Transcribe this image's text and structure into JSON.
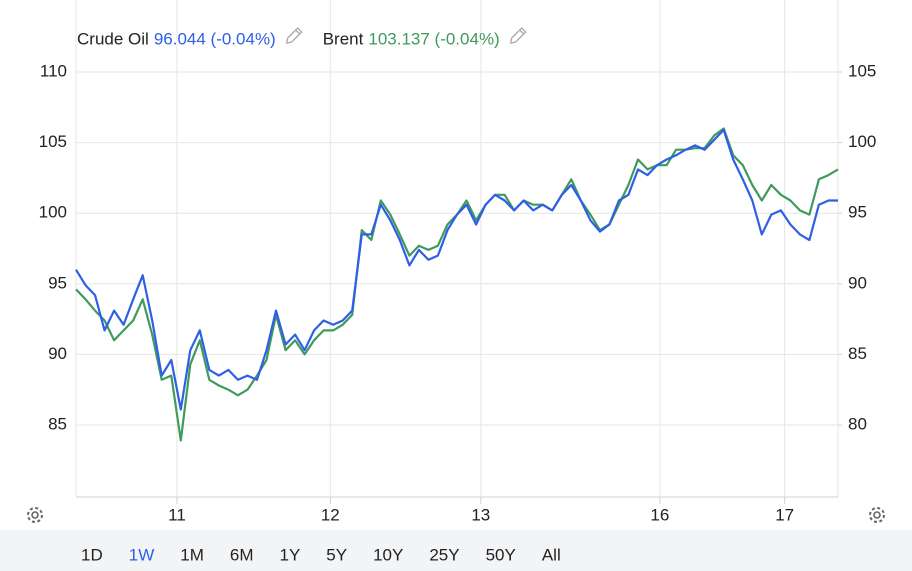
{
  "chart_data": {
    "type": "line",
    "x": [
      0,
      1,
      2,
      3,
      4,
      5,
      6,
      7,
      8,
      9,
      10,
      11,
      12,
      13,
      14,
      15,
      16,
      17,
      18,
      19,
      20,
      21,
      22,
      23,
      24,
      25,
      26,
      27,
      28,
      29,
      30,
      31,
      32,
      33,
      34,
      35,
      36,
      37,
      38,
      39,
      40,
      41,
      42,
      43,
      44,
      45,
      46,
      47,
      48,
      49,
      50,
      51,
      52,
      53,
      54,
      55,
      56,
      57,
      58,
      59,
      60,
      61,
      62,
      63,
      64,
      65,
      66,
      67,
      68,
      69,
      70,
      71,
      72,
      73,
      74,
      75,
      76,
      77,
      78,
      79,
      80
    ],
    "xlim": [
      0,
      80
    ],
    "xticks": [
      {
        "value": 10.6,
        "label": "11"
      },
      {
        "value": 26.7,
        "label": "12"
      },
      {
        "value": 42.5,
        "label": "13"
      },
      {
        "value": 61.3,
        "label": "16"
      },
      {
        "value": 74.4,
        "label": "17"
      }
    ],
    "ylim": [
      80,
      115
    ],
    "yticks": [
      85,
      90,
      95,
      100,
      105,
      110
    ],
    "y2lim": [
      75,
      110
    ],
    "y2ticks": [
      80,
      85,
      90,
      95,
      100,
      105
    ],
    "grid": true,
    "series": [
      {
        "name": "Crude Oil",
        "legend_value": "96.044 (-0.04%)",
        "color": "#2e5fe6",
        "axis": "y2",
        "values": [
          91.0,
          89.9,
          89.2,
          86.7,
          88.1,
          87.1,
          88.9,
          90.6,
          87.4,
          83.5,
          84.6,
          81.1,
          85.3,
          86.7,
          83.9,
          83.5,
          83.9,
          83.2,
          83.5,
          83.2,
          85.3,
          88.1,
          85.7,
          86.4,
          85.3,
          86.7,
          87.4,
          87.1,
          87.4,
          88.1,
          93.5,
          93.5,
          95.6,
          94.5,
          93.1,
          91.3,
          92.4,
          91.7,
          92.0,
          93.8,
          94.9,
          95.6,
          94.2,
          95.6,
          96.3,
          95.9,
          95.2,
          95.9,
          95.2,
          95.6,
          95.2,
          96.3,
          97.0,
          95.9,
          94.5,
          93.7,
          94.2,
          95.9,
          96.3,
          98.1,
          97.7,
          98.4,
          98.8,
          99.1,
          99.5,
          99.8,
          99.5,
          100.2,
          100.9,
          98.8,
          97.4,
          95.9,
          93.5,
          94.9,
          95.2,
          94.2,
          93.5,
          93.1,
          95.6,
          95.9,
          95.9
        ]
      },
      {
        "name": "Brent",
        "legend_value": "103.137 (-0.04%)",
        "color": "#3f9a5c",
        "values": [
          94.6,
          93.9,
          93.1,
          92.4,
          91.0,
          91.7,
          92.4,
          93.9,
          91.4,
          88.2,
          88.5,
          83.9,
          89.3,
          91.0,
          88.2,
          87.8,
          87.5,
          87.1,
          87.5,
          88.5,
          89.6,
          92.8,
          90.3,
          91.0,
          90.0,
          91.0,
          91.7,
          91.7,
          92.1,
          92.8,
          98.8,
          98.1,
          100.9,
          99.9,
          98.5,
          97.0,
          97.7,
          97.4,
          97.7,
          99.2,
          99.9,
          100.9,
          99.5,
          100.6,
          101.3,
          101.3,
          100.2,
          100.9,
          100.6,
          100.6,
          100.2,
          101.3,
          102.4,
          100.9,
          99.9,
          98.8,
          99.2,
          100.6,
          102.0,
          103.8,
          103.1,
          103.4,
          103.4,
          104.5,
          104.5,
          104.6,
          104.6,
          105.5,
          106.0,
          104.1,
          103.4,
          102.0,
          100.9,
          102.0,
          101.3,
          100.9,
          100.2,
          99.9,
          102.4,
          102.7,
          103.1
        ]
      }
    ],
    "range_buttons": [
      "1D",
      "1W",
      "1M",
      "6M",
      "1Y",
      "5Y",
      "10Y",
      "25Y",
      "50Y",
      "All"
    ],
    "active_range": 1
  }
}
